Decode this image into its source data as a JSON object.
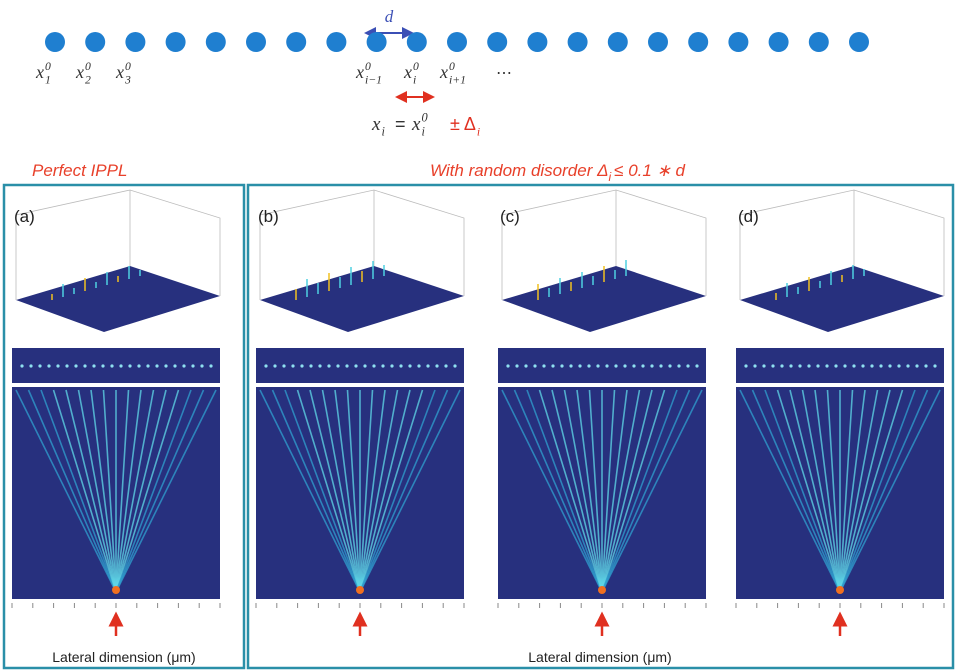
{
  "lattice": {
    "spacing_label": "d",
    "site_labels": [
      {
        "base": "x",
        "sub": "1",
        "sup": "0"
      },
      {
        "base": "x",
        "sub": "2",
        "sup": "0"
      },
      {
        "base": "x",
        "sub": "3",
        "sup": "0"
      },
      {
        "base": "x",
        "sub": "i−1",
        "sup": "0"
      },
      {
        "base": "x",
        "sub": "i",
        "sup": "0"
      },
      {
        "base": "x",
        "sub": "i+1",
        "sup": "0"
      }
    ],
    "ellipsis": "⋯",
    "equation": {
      "lhs": {
        "base": "x",
        "sub": "i"
      },
      "op": "=",
      "rhs": {
        "base": "x",
        "sub": "i",
        "sup": "0"
      },
      "perturbation": {
        "base": "± Δ",
        "sub": "i"
      }
    }
  },
  "headings": {
    "perfect": "Perfect IPPL",
    "disorder": {
      "text": "With random disorder Δ",
      "sub": "i",
      "rest": "≤ 0.1 ∗ d"
    }
  },
  "panels": [
    "(a)",
    "(b)",
    "(c)",
    "(d)"
  ],
  "axis_labels": {
    "perfect": "Lateral dimension (μm)",
    "disorder": "Lateral dimension (μm)"
  }
}
